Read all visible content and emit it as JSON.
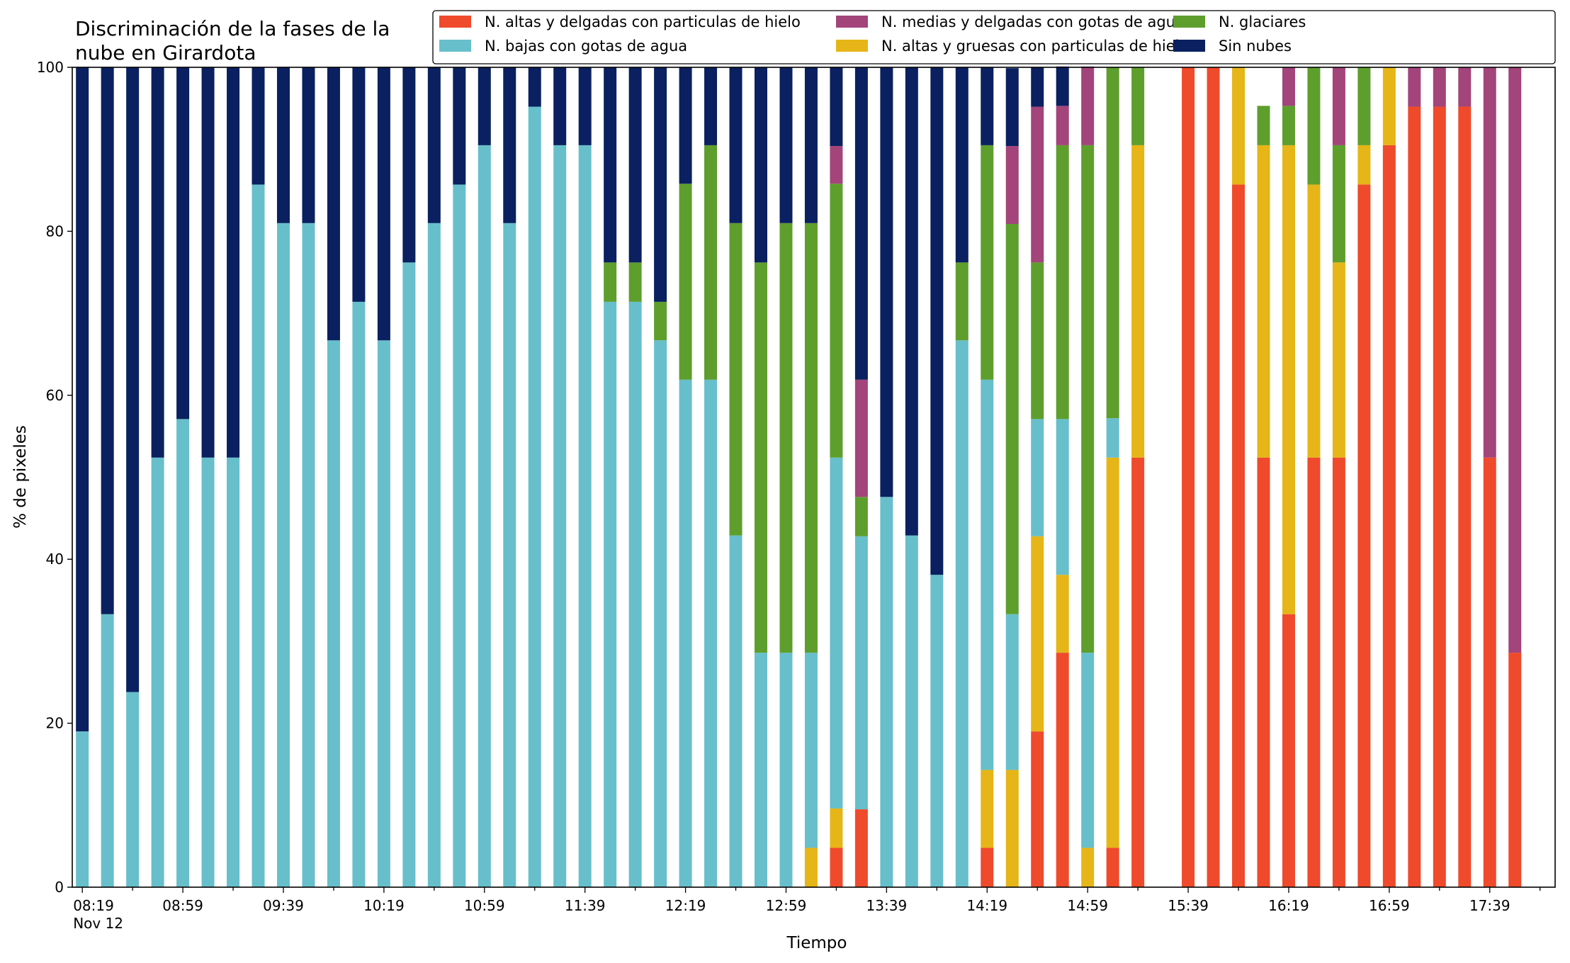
{
  "chart_data": {
    "type": "bar",
    "stacked": true,
    "title": "Discriminación de la fases de la nube en Girardota",
    "title_lines": [
      "Discriminación de la fases de la",
      "nube en Girardota"
    ],
    "xlabel": "Tiempo",
    "ylabel": "% de pixeles",
    "ylim": [
      0,
      100
    ],
    "yticks": [
      "0",
      "20",
      "40",
      "60",
      "80",
      "100"
    ],
    "xlim": [
      "08:15",
      "18:05"
    ],
    "xtick_interval_minutes": 40,
    "xtick_labels": [
      "08:19",
      "08:59",
      "09:39",
      "10:19",
      "10:59",
      "11:39",
      "12:19",
      "12:59",
      "13:39",
      "14:19",
      "14:59",
      "15:39",
      "16:19",
      "16:59",
      "17:39"
    ],
    "xtick_date_label": "Nov 12",
    "grid": false,
    "legend_position": "top-right",
    "legend_order": [
      0,
      2,
      4,
      1,
      3,
      5
    ],
    "x": [
      "08:19",
      "08:29",
      "08:39",
      "08:49",
      "08:59",
      "09:09",
      "09:19",
      "09:29",
      "09:39",
      "09:49",
      "09:59",
      "10:09",
      "10:19",
      "10:29",
      "10:39",
      "10:49",
      "10:59",
      "11:09",
      "11:19",
      "11:29",
      "11:39",
      "11:49",
      "11:59",
      "12:09",
      "12:19",
      "12:29",
      "12:39",
      "12:49",
      "12:59",
      "13:09",
      "13:19",
      "13:29",
      "13:39",
      "13:49",
      "13:59",
      "14:09",
      "14:19",
      "14:29",
      "14:39",
      "14:49",
      "14:59",
      "15:09",
      "15:19",
      "15:29",
      "15:39",
      "15:49",
      "15:59",
      "16:09",
      "16:19",
      "16:29",
      "16:39",
      "16:49",
      "16:59",
      "17:09",
      "17:19",
      "17:29",
      "17:39",
      "17:49"
    ],
    "series": [
      {
        "name": "N. altas y delgadas con particulas de hielo",
        "color": "#ef4a2b",
        "values": [
          0,
          0,
          0,
          0,
          0,
          0,
          0,
          0,
          0,
          0,
          0,
          0,
          0,
          0,
          0,
          0,
          0,
          0,
          0,
          0,
          0,
          0,
          0,
          0,
          0,
          0,
          0,
          0,
          0,
          0,
          4.8,
          9.5,
          0,
          0,
          0,
          0,
          4.8,
          0,
          19,
          28.6,
          0,
          4.8,
          52.4,
          null,
          100,
          100,
          85.7,
          52.4,
          33.3,
          52.4,
          52.4,
          85.7,
          90.5,
          95.2,
          95.2,
          95.2,
          52.4,
          28.6
        ]
      },
      {
        "name": "N. altas y gruesas con particulas de hielo",
        "color": "#e6b517",
        "values": [
          0,
          0,
          0,
          0,
          0,
          0,
          0,
          0,
          0,
          0,
          0,
          0,
          0,
          0,
          0,
          0,
          0,
          0,
          0,
          0,
          0,
          0,
          0,
          0,
          0,
          0,
          0,
          0,
          0,
          4.8,
          4.8,
          0,
          0,
          0,
          0,
          0,
          9.5,
          14.3,
          23.8,
          9.5,
          4.8,
          47.6,
          38.1,
          null,
          0,
          0,
          14.3,
          38.1,
          57.2,
          33.3,
          23.8,
          4.8,
          9.5,
          0,
          0,
          0,
          0,
          0
        ]
      },
      {
        "name": "N. bajas con gotas de agua",
        "color": "#67bfcb",
        "values": [
          19,
          33.3,
          23.8,
          52.4,
          57.1,
          52.4,
          52.4,
          85.7,
          81,
          81,
          66.7,
          71.4,
          66.7,
          76.2,
          81,
          85.7,
          90.5,
          81,
          95.2,
          90.5,
          90.5,
          71.4,
          71.4,
          66.7,
          61.9,
          61.9,
          42.9,
          28.6,
          28.6,
          23.8,
          42.8,
          33.3,
          47.6,
          42.9,
          38.1,
          66.7,
          47.6,
          19,
          14.3,
          19,
          23.8,
          4.8,
          0,
          null,
          0,
          0,
          0,
          0,
          0,
          0,
          0,
          0,
          0,
          0,
          0,
          0,
          0,
          0
        ]
      },
      {
        "name": "N. glaciares",
        "color": "#5e9e2d",
        "values": [
          0,
          0,
          0,
          0,
          0,
          0,
          0,
          0,
          0,
          0,
          0,
          0,
          0,
          0,
          0,
          0,
          0,
          0,
          0,
          0,
          0,
          4.8,
          4.8,
          4.7,
          23.9,
          28.6,
          38.1,
          47.6,
          52.4,
          52.4,
          33.4,
          4.8,
          0,
          0,
          0,
          9.5,
          28.6,
          47.6,
          19.1,
          33.4,
          61.9,
          42.8,
          9.5,
          null,
          0,
          0,
          0,
          4.8,
          4.8,
          14.3,
          14.3,
          9.5,
          0,
          0,
          0,
          0,
          0,
          0
        ]
      },
      {
        "name": "N. medias y delgadas con gotas de agua",
        "color": "#a3447b",
        "values": [
          0,
          0,
          0,
          0,
          0,
          0,
          0,
          0,
          0,
          0,
          0,
          0,
          0,
          0,
          0,
          0,
          0,
          0,
          0,
          0,
          0,
          0,
          0,
          0,
          0,
          0,
          0,
          0,
          0,
          0,
          4.6,
          14.3,
          0,
          0,
          0,
          0,
          0,
          9.5,
          19,
          4.8,
          9.6,
          0,
          0,
          null,
          0,
          0,
          0,
          0,
          4.7,
          0,
          9.5,
          0,
          0,
          4.8,
          4.8,
          4.8,
          47.6,
          71.4
        ]
      },
      {
        "name": "Sin nubes",
        "color": "#0a2060",
        "values": [
          81,
          66.7,
          76.2,
          47.6,
          42.9,
          47.6,
          47.6,
          14.3,
          19,
          19,
          33.3,
          28.6,
          33.3,
          23.8,
          19,
          14.3,
          9.5,
          19,
          4.8,
          9.5,
          9.5,
          23.8,
          23.8,
          28.6,
          14.2,
          9.5,
          19,
          23.8,
          19,
          19,
          9.6,
          38.1,
          52.4,
          57.1,
          61.9,
          23.8,
          9.5,
          9.5,
          4.8,
          4.8,
          0,
          0,
          0,
          null,
          0,
          0,
          0,
          0,
          0,
          0,
          0,
          0,
          0,
          0,
          0,
          0,
          0,
          0
        ]
      }
    ]
  }
}
